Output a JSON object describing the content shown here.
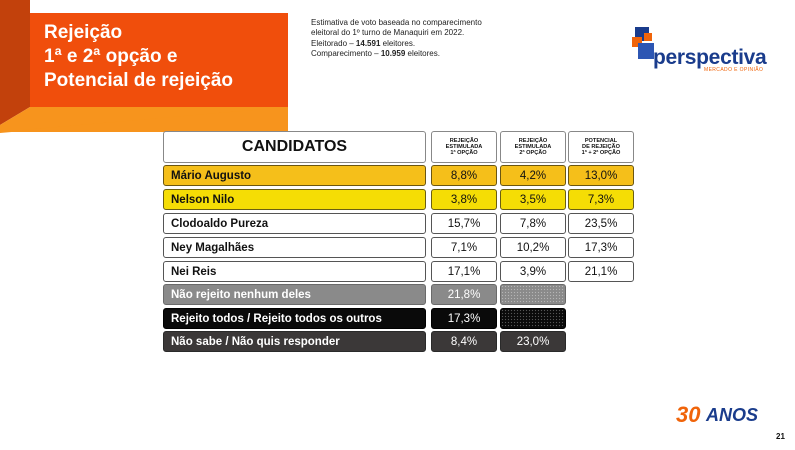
{
  "title": {
    "line1": "Rejeição",
    "line2": "1ª e 2ª opção e",
    "line3": "Potencial de rejeição"
  },
  "note": {
    "line1": "Estimativa de voto baseada no comparecimento",
    "line2": "eleitoral do 1º turno de Manaquiri em 2022.",
    "line3_label": "Eleitorado – ",
    "line3_value": "14.591",
    "line3_suffix": " eleitores.",
    "line4_label": "Comparecimento – ",
    "line4_value": "10.959",
    "line4_suffix": " eleitores."
  },
  "logo": {
    "name": "perspectiva",
    "tagline": "MERCADO E OPINIÃO",
    "icon": "perspectiva-logo-icon",
    "colors": {
      "blue": "#1a3c8c",
      "orange": "#f0640a"
    }
  },
  "table": {
    "header": {
      "candidates": "CANDIDATOS",
      "col1": [
        "REJEIÇÃO",
        "ESTIMULADA",
        "1ª OPÇÃO"
      ],
      "col2": [
        "REJEIÇÃO",
        "ESTIMULADA",
        "2ª OPÇÃO"
      ],
      "col3": [
        "POTENCIAL",
        "DE REJEIÇÃO",
        "1ª + 2ª OPÇÃO"
      ]
    },
    "rows": [
      {
        "name": "Mário Augusto",
        "v1": "8,8%",
        "v2": "4,2%",
        "v3": "13,0%",
        "style": "orange"
      },
      {
        "name": "Nelson Nilo",
        "v1": "3,8%",
        "v2": "3,5%",
        "v3": "7,3%",
        "style": "yellow"
      },
      {
        "name": "Clodoaldo Pureza",
        "v1": "15,7%",
        "v2": "7,8%",
        "v3": "23,5%",
        "style": "white"
      },
      {
        "name": "Ney Magalhães",
        "v1": "7,1%",
        "v2": "10,2%",
        "v3": "17,3%",
        "style": "white"
      },
      {
        "name": "Nei Reis",
        "v1": "17,1%",
        "v2": "3,9%",
        "v3": "21,1%",
        "style": "white"
      },
      {
        "name": "Não rejeito nenhum deles",
        "v1": "21,8%",
        "v2": "",
        "style": "gray"
      },
      {
        "name": "Rejeito todos / Rejeito todos os outros",
        "v1": "17,3%",
        "v2": "",
        "style": "black"
      },
      {
        "name": "Não sabe / Não quis responder",
        "v1": "8,4%",
        "v2": "23,0%",
        "style": "dark"
      }
    ],
    "colors": {
      "orange": "#f5bf1a",
      "yellow": "#f5dd05",
      "gray": "#8a8a8a",
      "black": "#0a0a0a",
      "dark": "#3b3838"
    }
  },
  "badge": {
    "number": "30",
    "text": "ANOS"
  },
  "page_number": "21",
  "accent": {
    "title_orange": "#f04e0c",
    "stripe_orange": "#f7941d",
    "stripe_dark": "#a83a10"
  }
}
